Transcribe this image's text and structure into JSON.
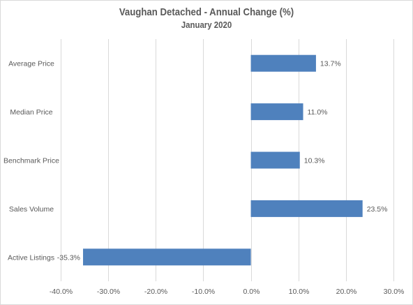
{
  "chart_data": {
    "type": "bar",
    "orientation": "horizontal",
    "title": "Vaughan Detached - Annual Change (%)",
    "subtitle": "January 2020",
    "categories": [
      "Average Price",
      "Median Price",
      "Benchmark Price",
      "Sales Volume",
      "Active Listings"
    ],
    "values": [
      13.7,
      11.0,
      10.3,
      23.5,
      -35.3
    ],
    "data_labels": [
      "13.7%",
      "11.0%",
      "10.3%",
      "23.5%",
      "-35.3%"
    ],
    "xlim": [
      -40,
      30
    ],
    "xticks": [
      -40,
      -30,
      -20,
      -10,
      0,
      10,
      20,
      30
    ],
    "xtick_labels": [
      "-40.0%",
      "-30.0%",
      "-20.0%",
      "-10.0%",
      "0.0%",
      "10.0%",
      "20.0%",
      "30.0%"
    ],
    "xlabel": "",
    "ylabel": "",
    "grid": "vertical",
    "legend": "none",
    "bar_color": "#4f81bd"
  }
}
